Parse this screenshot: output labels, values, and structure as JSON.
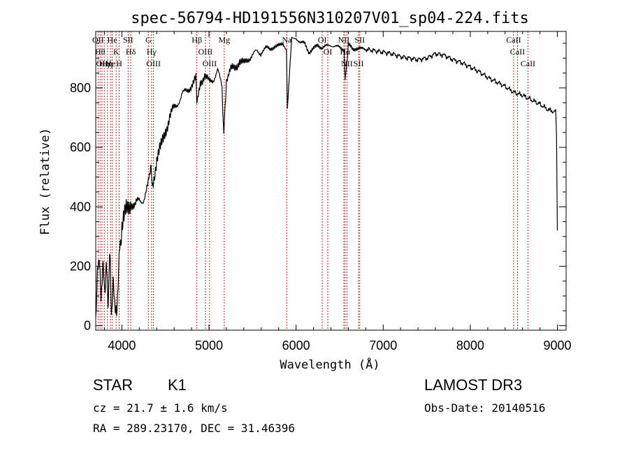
{
  "chart_data": {
    "type": "line",
    "title": "spec-56794-HD191556N310207V01_sp04-224.fits",
    "xlabel": "Wavelength (Å)",
    "ylabel": "Flux (relative)",
    "xlim": [
      3700,
      9100
    ],
    "ylim": [
      -15,
      990
    ],
    "x_ticks": [
      4000,
      5000,
      6000,
      7000,
      8000,
      9000
    ],
    "y_ticks": [
      0,
      200,
      400,
      600,
      800
    ],
    "series": [
      {
        "name": "flux",
        "x": [
          3700,
          3720,
          3740,
          3760,
          3780,
          3800,
          3820,
          3840,
          3860,
          3880,
          3900,
          3920,
          3940,
          3960,
          3980,
          4000,
          4050,
          4100,
          4150,
          4200,
          4250,
          4300,
          4330,
          4350,
          4400,
          4450,
          4500,
          4550,
          4600,
          4650,
          4700,
          4750,
          4800,
          4850,
          4860,
          4900,
          4950,
          5000,
          5050,
          5100,
          5150,
          5170,
          5200,
          5250,
          5300,
          5350,
          5400,
          5450,
          5500,
          5550,
          5600,
          5650,
          5700,
          5750,
          5800,
          5850,
          5890,
          5900,
          5950,
          6000,
          6050,
          6100,
          6150,
          6200,
          6250,
          6300,
          6350,
          6400,
          6450,
          6500,
          6550,
          6563,
          6600,
          6650,
          6700,
          6750,
          6800,
          6900,
          7000,
          7100,
          7200,
          7300,
          7400,
          7500,
          7600,
          7700,
          7800,
          7900,
          8000,
          8100,
          8200,
          8300,
          8400,
          8500,
          8600,
          8700,
          8800,
          8900,
          8980,
          8990,
          9000
        ],
        "y": [
          40,
          170,
          240,
          90,
          200,
          130,
          190,
          90,
          230,
          60,
          130,
          80,
          30,
          170,
          280,
          330,
          380,
          420,
          400,
          420,
          430,
          470,
          540,
          470,
          560,
          600,
          660,
          700,
          730,
          760,
          780,
          790,
          810,
          830,
          750,
          820,
          840,
          820,
          830,
          860,
          800,
          640,
          830,
          860,
          870,
          890,
          880,
          900,
          910,
          920,
          920,
          935,
          930,
          940,
          940,
          950,
          930,
          730,
          965,
          970,
          950,
          950,
          920,
          930,
          945,
          935,
          940,
          945,
          940,
          935,
          930,
          820,
          945,
          930,
          935,
          930,
          930,
          925,
          920,
          915,
          905,
          900,
          895,
          900,
          915,
          910,
          895,
          885,
          870,
          855,
          835,
          820,
          805,
          785,
          775,
          760,
          745,
          725,
          720,
          640,
          320
        ]
      }
    ],
    "lines": [
      {
        "wave": 3727,
        "labels": [
          "OII"
        ]
      },
      {
        "wave": 3750,
        "labels": [
          "Hθ"
        ]
      },
      {
        "wave": 3771,
        "labels": [
          "OII"
        ]
      },
      {
        "wave": 3798,
        "labels": [
          "Hη"
        ]
      },
      {
        "wave": 3835,
        "labels": [
          "Hη"
        ]
      },
      {
        "wave": 3869,
        "labels": [
          "He"
        ]
      },
      {
        "wave": 3889,
        "labels": [
          "He"
        ]
      },
      {
        "wave": 3934,
        "labels": [
          "K"
        ]
      },
      {
        "wave": 3969,
        "labels": [
          "H"
        ]
      },
      {
        "wave": 4072,
        "labels": [
          "SII"
        ]
      },
      {
        "wave": 4102,
        "labels": [
          "Hδ"
        ]
      },
      {
        "wave": 4304,
        "labels": [
          "G"
        ]
      },
      {
        "wave": 4341,
        "labels": [
          "Hγ"
        ]
      },
      {
        "wave": 4363,
        "labels": [
          "OIII"
        ]
      },
      {
        "wave": 4861,
        "labels": [
          "Hβ"
        ]
      },
      {
        "wave": 4959,
        "labels": [
          "OIII"
        ]
      },
      {
        "wave": 5007,
        "labels": [
          "OIII"
        ]
      },
      {
        "wave": 5175,
        "labels": [
          "Mg"
        ]
      },
      {
        "wave": 5893,
        "labels": [
          "Na"
        ]
      },
      {
        "wave": 6300,
        "labels": [
          "OI"
        ]
      },
      {
        "wave": 6364,
        "labels": [
          "OI"
        ]
      },
      {
        "wave": 6548,
        "labels": [
          "NII"
        ]
      },
      {
        "wave": 6563,
        "labels": [
          "Hα"
        ]
      },
      {
        "wave": 6584,
        "labels": [
          "NII"
        ]
      },
      {
        "wave": 6717,
        "labels": [
          "SII"
        ]
      },
      {
        "wave": 6731,
        "labels": [
          "SII"
        ]
      },
      {
        "wave": 8498,
        "labels": [
          "CaII"
        ]
      },
      {
        "wave": 8542,
        "labels": [
          "CaII"
        ]
      },
      {
        "wave": 8662,
        "labels": [
          "CaII"
        ]
      }
    ],
    "line_color": "#b22222",
    "spectrum_color": "#000000"
  },
  "info": {
    "class": "STAR",
    "subclass": "K1",
    "survey": "LAMOST DR3",
    "redshift": "cz = 21.7 ± 1.6 km/s",
    "obs_date": "Obs-Date: 20140516",
    "coords": "RA = 289.23170, DEC =  31.46396"
  }
}
